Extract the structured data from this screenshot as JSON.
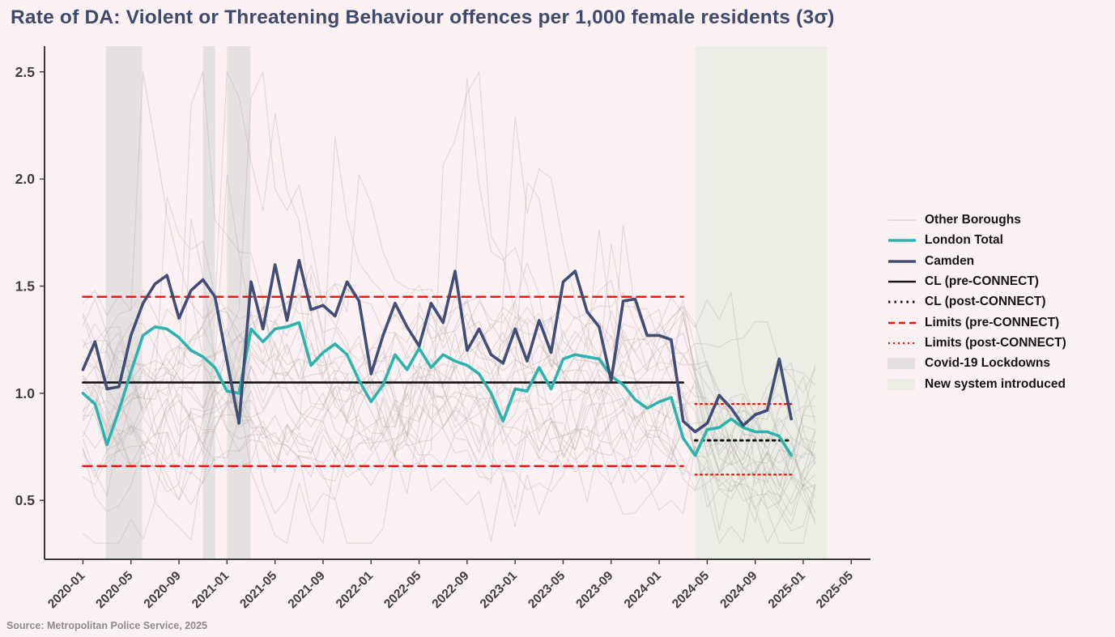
{
  "title": "Rate of DA: Violent or Threatening Behaviour offences per 1,000 female residents (3σ)",
  "source_note": "Source: Metropolitan Police Service, 2025",
  "colors": {
    "background": "#fdf2f3",
    "title": "#3e4a6d",
    "camden": "#3f4d77",
    "london_total": "#2bb3ae",
    "other_boroughs": "#d8d2d2",
    "control_black": "#141414",
    "limit_red": "#f90d00",
    "lockdown_band": "#e5e1e0",
    "new_system_band": "#ecede4",
    "axis": "#3a3a3a",
    "tick_label": "#3e3e3e"
  },
  "legend": [
    {
      "label": "Other Boroughs",
      "swatch": "line",
      "color": "#dcd7d7",
      "width": 1.6
    },
    {
      "label": "London Total",
      "swatch": "line",
      "color": "#2bb3ae",
      "width": 3.6
    },
    {
      "label": "Camden",
      "swatch": "line",
      "color": "#3f4d77",
      "width": 3.6
    },
    {
      "label": "CL (pre-CONNECT)",
      "swatch": "line",
      "color": "#141414",
      "width": 2.6
    },
    {
      "label": "CL (post-CONNECT)",
      "swatch": "dotted",
      "color": "#141414",
      "width": 3.0
    },
    {
      "label": "Limits (pre-CONNECT)",
      "swatch": "dashed",
      "color": "#f90d00",
      "width": 2.6
    },
    {
      "label": "Limits (post-CONNECT)",
      "swatch": "dotted-fine",
      "color": "#f90d00",
      "width": 2.2
    },
    {
      "label": "Covid-19 Lockdowns",
      "swatch": "box",
      "color": "#e5e1e0"
    },
    {
      "label": "New system introduced",
      "swatch": "box",
      "color": "#ecede4"
    }
  ],
  "chart_data": {
    "type": "line",
    "title": "Rate of DA: Violent or Threatening Behaviour offences per 1,000 female residents (3σ)",
    "xlabel": "",
    "ylabel": "",
    "x_start_month": "2020-01",
    "x_tick_labels": [
      "2020-01",
      "2020-05",
      "2020-09",
      "2021-01",
      "2021-05",
      "2021-09",
      "2022-01",
      "2022-05",
      "2022-09",
      "2023-01",
      "2023-05",
      "2023-09",
      "2024-01",
      "2024-05",
      "2024-09",
      "2025-01",
      "2025-05"
    ],
    "x_tick_months": [
      0,
      4,
      8,
      12,
      16,
      20,
      24,
      28,
      32,
      36,
      40,
      44,
      48,
      52,
      56,
      60,
      64
    ],
    "y_ticks": [
      "0.5",
      "1.0",
      "1.5",
      "2.0",
      "2.5"
    ],
    "y_tick_values": [
      0.5,
      1.0,
      1.5,
      2.0,
      2.5
    ],
    "ylim": [
      0.225,
      2.62
    ],
    "xlim_months": [
      -3.2,
      65.6
    ],
    "grid": false,
    "legend_position": "right-outside",
    "series": [
      {
        "name": "Camden",
        "values": [
          1.11,
          1.24,
          1.02,
          1.03,
          1.27,
          1.42,
          1.51,
          1.55,
          1.35,
          1.48,
          1.53,
          1.45,
          1.15,
          0.86,
          1.52,
          1.3,
          1.6,
          1.34,
          1.62,
          1.39,
          1.41,
          1.36,
          1.52,
          1.43,
          1.09,
          1.27,
          1.42,
          1.31,
          1.22,
          1.42,
          1.33,
          1.57,
          1.2,
          1.3,
          1.18,
          1.14,
          1.3,
          1.15,
          1.34,
          1.19,
          1.52,
          1.57,
          1.38,
          1.31,
          1.06,
          1.43,
          1.44,
          1.27,
          1.27,
          1.25,
          0.87,
          0.82,
          0.86,
          0.99,
          0.93,
          0.85,
          0.9,
          0.92,
          1.16,
          0.88
        ]
      },
      {
        "name": "London Total",
        "values": [
          1.0,
          0.95,
          0.76,
          0.92,
          1.1,
          1.27,
          1.31,
          1.3,
          1.26,
          1.2,
          1.17,
          1.12,
          1.01,
          1.0,
          1.3,
          1.24,
          1.3,
          1.31,
          1.33,
          1.13,
          1.19,
          1.23,
          1.18,
          1.06,
          0.96,
          1.04,
          1.18,
          1.11,
          1.21,
          1.12,
          1.18,
          1.15,
          1.13,
          1.09,
          1.0,
          0.87,
          1.02,
          1.01,
          1.12,
          1.02,
          1.16,
          1.18,
          1.17,
          1.16,
          1.08,
          1.04,
          0.97,
          0.93,
          0.96,
          0.98,
          0.79,
          0.71,
          0.83,
          0.84,
          0.88,
          0.84,
          0.82,
          0.82,
          0.8,
          0.71
        ]
      }
    ],
    "control_lines": {
      "cl_pre": 1.05,
      "limits_pre": [
        0.66,
        1.45
      ],
      "pre_span_months": [
        0,
        50
      ],
      "cl_post": 0.78,
      "limits_post": [
        0.62,
        0.95
      ],
      "post_span_months": [
        51,
        59
      ]
    },
    "bands": {
      "lockdowns_months": [
        [
          1.9,
          4.93
        ],
        [
          9.98,
          11.0
        ],
        [
          12.0,
          13.96
        ]
      ],
      "new_system_months": [
        51.0,
        62.0
      ]
    },
    "other_boroughs": {
      "count": 28,
      "seed": 11,
      "months_span": [
        0,
        61
      ],
      "approx_range": [
        0.3,
        2.5
      ]
    }
  }
}
